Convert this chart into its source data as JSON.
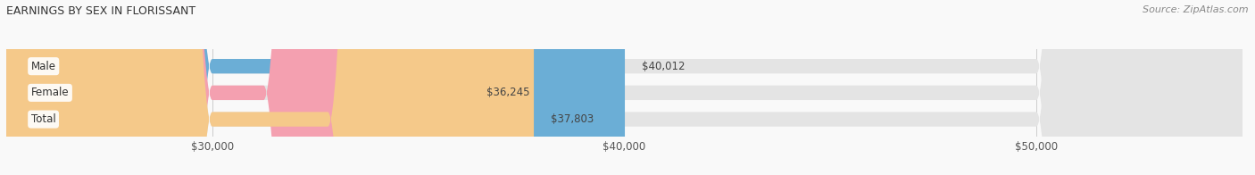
{
  "title": "EARNINGS BY SEX IN FLORISSANT",
  "source": "Source: ZipAtlas.com",
  "categories": [
    "Male",
    "Female",
    "Total"
  ],
  "values": [
    40012,
    36245,
    37803
  ],
  "bar_colors": [
    "#6baed6",
    "#f4a0b0",
    "#f5c98a"
  ],
  "track_color": "#e4e4e4",
  "label_values": [
    "$40,012",
    "$36,245",
    "$37,803"
  ],
  "xlim_min": 25000,
  "xlim_max": 55000,
  "xticks": [
    30000,
    40000,
    50000
  ],
  "xtick_labels": [
    "$30,000",
    "$40,000",
    "$50,000"
  ],
  "bar_height": 0.55,
  "background_color": "#f9f9f9",
  "title_fontsize": 9,
  "source_fontsize": 8,
  "label_fontsize": 8.5,
  "tick_fontsize": 8.5
}
